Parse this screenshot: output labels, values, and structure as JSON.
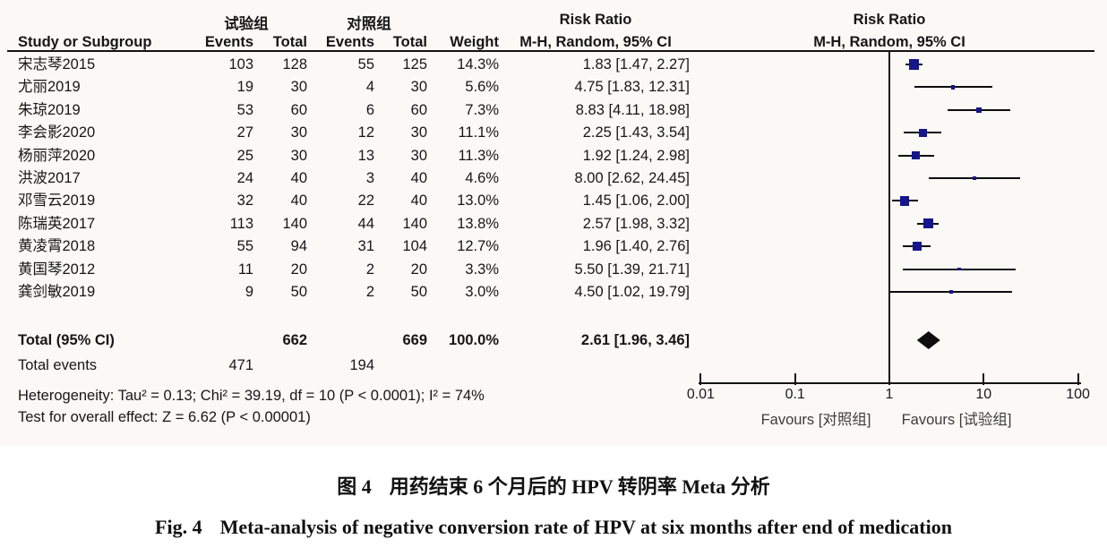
{
  "table": {
    "groups": {
      "experimental": "试验组",
      "control": "对照组"
    },
    "risk_ratio_header": "Risk Ratio",
    "columns": {
      "study": "Study or Subgroup",
      "events": "Events",
      "total": "Total",
      "weight": "Weight",
      "mh_random_ci": "M-H, Random, 95% CI"
    },
    "total_row": {
      "label": "Total (95% CI)",
      "total_exp": "662",
      "total_ctl": "669",
      "weight": "100.0%",
      "ci_text": "2.61 [1.96, 3.46]"
    },
    "total_events": {
      "label": "Total events",
      "events_exp": "471",
      "events_ctl": "194"
    },
    "heterogeneity": "Heterogeneity: Tau² = 0.13; Chi² = 39.19, df = 10 (P < 0.0001); I² = 74%",
    "overall_test": "Test for overall effect: Z = 6.62 (P < 0.00001)"
  },
  "chart_data": {
    "type": "scatter",
    "subtype": "forest-plot",
    "effect_measure": "Risk Ratio, M-H, Random, 95% CI",
    "x_scale": "log10",
    "x_range": [
      0.01,
      100
    ],
    "x_ticks": [
      "0.01",
      "0.1",
      "1",
      "10",
      "100"
    ],
    "favours_left": "Favours [对照组]",
    "favours_right": "Favours [试验组]",
    "studies": [
      {
        "name": "宋志琴2015",
        "events_exp": 103,
        "total_exp": 128,
        "events_ctl": 55,
        "total_ctl": 125,
        "weight": "14.3%",
        "weight_pct": 14.3,
        "rr": 1.83,
        "ci_low": 1.47,
        "ci_high": 2.27,
        "ci_text": "1.83 [1.47, 2.27]"
      },
      {
        "name": "尤丽2019",
        "events_exp": 19,
        "total_exp": 30,
        "events_ctl": 4,
        "total_ctl": 30,
        "weight": "5.6%",
        "weight_pct": 5.6,
        "rr": 4.75,
        "ci_low": 1.83,
        "ci_high": 12.31,
        "ci_text": "4.75 [1.83, 12.31]"
      },
      {
        "name": "朱琼2019",
        "events_exp": 53,
        "total_exp": 60,
        "events_ctl": 6,
        "total_ctl": 60,
        "weight": "7.3%",
        "weight_pct": 7.3,
        "rr": 8.83,
        "ci_low": 4.11,
        "ci_high": 18.98,
        "ci_text": "8.83 [4.11, 18.98]"
      },
      {
        "name": "李会影2020",
        "events_exp": 27,
        "total_exp": 30,
        "events_ctl": 12,
        "total_ctl": 30,
        "weight": "11.1%",
        "weight_pct": 11.1,
        "rr": 2.25,
        "ci_low": 1.43,
        "ci_high": 3.54,
        "ci_text": "2.25 [1.43, 3.54]"
      },
      {
        "name": "杨丽萍2020",
        "events_exp": 25,
        "total_exp": 30,
        "events_ctl": 13,
        "total_ctl": 30,
        "weight": "11.3%",
        "weight_pct": 11.3,
        "rr": 1.92,
        "ci_low": 1.24,
        "ci_high": 2.98,
        "ci_text": "1.92 [1.24, 2.98]"
      },
      {
        "name": "洪波2017",
        "events_exp": 24,
        "total_exp": 40,
        "events_ctl": 3,
        "total_ctl": 40,
        "weight": "4.6%",
        "weight_pct": 4.6,
        "rr": 8.0,
        "ci_low": 2.62,
        "ci_high": 24.45,
        "ci_text": "8.00 [2.62, 24.45]"
      },
      {
        "name": "邓雪云2019",
        "events_exp": 32,
        "total_exp": 40,
        "events_ctl": 22,
        "total_ctl": 40,
        "weight": "13.0%",
        "weight_pct": 13.0,
        "rr": 1.45,
        "ci_low": 1.06,
        "ci_high": 2.0,
        "ci_text": "1.45 [1.06, 2.00]"
      },
      {
        "name": "陈瑞英2017",
        "events_exp": 113,
        "total_exp": 140,
        "events_ctl": 44,
        "total_ctl": 140,
        "weight": "13.8%",
        "weight_pct": 13.8,
        "rr": 2.57,
        "ci_low": 1.98,
        "ci_high": 3.32,
        "ci_text": "2.57 [1.98, 3.32]"
      },
      {
        "name": "黄凌霄2018",
        "events_exp": 55,
        "total_exp": 94,
        "events_ctl": 31,
        "total_ctl": 104,
        "weight": "12.7%",
        "weight_pct": 12.7,
        "rr": 1.96,
        "ci_low": 1.4,
        "ci_high": 2.76,
        "ci_text": "1.96 [1.40, 2.76]"
      },
      {
        "name": "黄国琴2012",
        "events_exp": 11,
        "total_exp": 20,
        "events_ctl": 2,
        "total_ctl": 20,
        "weight": "3.3%",
        "weight_pct": 3.3,
        "rr": 5.5,
        "ci_low": 1.39,
        "ci_high": 21.71,
        "ci_text": "5.50 [1.39, 21.71]"
      },
      {
        "name": "龚剑敏2019",
        "events_exp": 9,
        "total_exp": 50,
        "events_ctl": 2,
        "total_ctl": 50,
        "weight": "3.0%",
        "weight_pct": 3.0,
        "rr": 4.5,
        "ci_low": 1.02,
        "ci_high": 19.79,
        "ci_text": "4.50 [1.02, 19.79]"
      }
    ],
    "overall": {
      "rr": 2.61,
      "ci_low": 1.96,
      "ci_high": 3.46
    },
    "colors": {
      "marker": "#15158c",
      "line": "#0d0d0d",
      "diamond": "#0d0d0d"
    }
  },
  "caption": {
    "zh_label": "图 4",
    "zh_text": "用药结束 6 个月后的 HPV 转阴率 Meta 分析",
    "en_label": "Fig. 4",
    "en_text": "Meta-analysis of negative conversion rate of HPV at six months after end of medication"
  }
}
